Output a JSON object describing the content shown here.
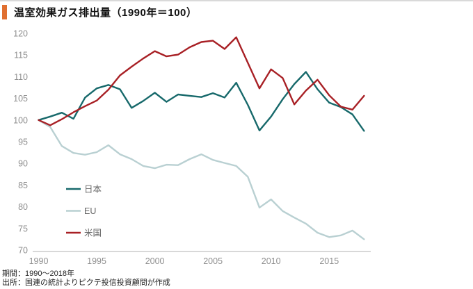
{
  "title": {
    "text": "温室効果ガス排出量（1990年＝100）"
  },
  "accent_color": "#e06f30",
  "footer": {
    "line1": "期間：1990～2018年",
    "line2": "出所：国連の統計よりピクテ投信投資顧問が作成"
  },
  "colors": {
    "axis_line": "#cccccc",
    "tick_label": "#8f8f8f",
    "legend_label": "#666666"
  },
  "chart_data": {
    "type": "line",
    "title": "温室効果ガス排出量（1990年＝100）",
    "xlabel": "",
    "ylabel": "",
    "x": [
      1990,
      1991,
      1992,
      1993,
      1994,
      1995,
      1996,
      1997,
      1998,
      1999,
      2000,
      2001,
      2002,
      2003,
      2004,
      2005,
      2006,
      2007,
      2008,
      2009,
      2010,
      2011,
      2012,
      2013,
      2014,
      2015,
      2016,
      2017,
      2018
    ],
    "series": [
      {
        "name": "日本",
        "color": "#17696b",
        "values": [
          100,
          100.8,
          101.7,
          100.3,
          105.2,
          107.3,
          108.1,
          107.1,
          102.8,
          104.4,
          106.3,
          104.2,
          105.9,
          105.6,
          105.3,
          106.2,
          105.2,
          108.6,
          103.5,
          97.6,
          100.8,
          104.8,
          108.3,
          111.1,
          107.1,
          104.0,
          103.0,
          101.3,
          97.5
        ]
      },
      {
        "name": "EU",
        "color": "#b9d0d2",
        "values": [
          100,
          98.4,
          94.0,
          92.4,
          92.0,
          92.6,
          94.2,
          92.1,
          91.0,
          89.4,
          88.9,
          89.7,
          89.6,
          91.0,
          92.1,
          90.8,
          90.1,
          89.4,
          86.9,
          79.8,
          81.7,
          79.0,
          77.5,
          76.1,
          74.0,
          73.0,
          73.4,
          74.5,
          72.5
        ]
      },
      {
        "name": "米国",
        "color": "#a82025",
        "values": [
          100,
          98.8,
          100.2,
          101.8,
          103.2,
          104.5,
          107.0,
          110.3,
          112.3,
          114.2,
          115.9,
          114.7,
          115.1,
          116.8,
          118.0,
          118.3,
          116.4,
          119.1,
          113.2,
          107.3,
          111.7,
          109.7,
          103.6,
          106.8,
          109.3,
          105.7,
          103.1,
          102.4,
          105.6
        ]
      }
    ],
    "ylim": [
      70,
      120
    ],
    "yticks": [
      120,
      115,
      110,
      105,
      100,
      95,
      90,
      85,
      80,
      75,
      70
    ],
    "xticks": [
      1990,
      1995,
      2000,
      2005,
      2010,
      2015
    ],
    "grid": false,
    "legend_position": "inside-left"
  }
}
